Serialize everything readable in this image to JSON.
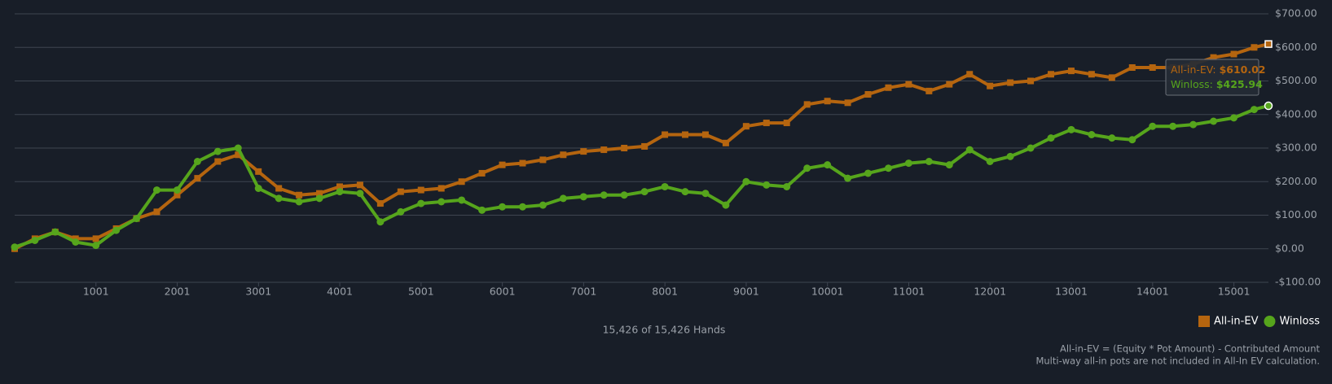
{
  "chart_data": {
    "type": "line",
    "x": [
      1,
      250,
      500,
      750,
      1000,
      1250,
      1500,
      1750,
      2000,
      2250,
      2500,
      2750,
      3000,
      3250,
      3500,
      3750,
      4000,
      4250,
      4500,
      4750,
      5000,
      5250,
      5500,
      5750,
      6000,
      6250,
      6500,
      6750,
      7000,
      7250,
      7500,
      7750,
      8000,
      8250,
      8500,
      8750,
      9000,
      9250,
      9500,
      9750,
      10000,
      10250,
      10500,
      10750,
      11000,
      11250,
      11500,
      11750,
      12000,
      12250,
      12500,
      12750,
      13000,
      13250,
      13500,
      13750,
      14000,
      14250,
      14500,
      14750,
      15000,
      15250,
      15426
    ],
    "series": [
      {
        "name": "All-in-EV",
        "color": "#b5650f",
        "marker": "square",
        "values": [
          0,
          30,
          50,
          30,
          30,
          60,
          90,
          110,
          160,
          210,
          260,
          280,
          230,
          180,
          160,
          165,
          185,
          190,
          135,
          170,
          175,
          180,
          200,
          225,
          250,
          255,
          265,
          280,
          290,
          295,
          300,
          305,
          340,
          340,
          340,
          315,
          365,
          375,
          375,
          430,
          440,
          435,
          460,
          480,
          490,
          470,
          490,
          520,
          485,
          495,
          500,
          520,
          530,
          520,
          510,
          540,
          540,
          540,
          550,
          570,
          580,
          600,
          610.02
        ]
      },
      {
        "name": "Winloss",
        "color": "#56a51c",
        "marker": "circle",
        "values": [
          5,
          25,
          50,
          20,
          10,
          55,
          90,
          175,
          175,
          260,
          290,
          300,
          180,
          150,
          140,
          150,
          170,
          165,
          80,
          110,
          135,
          140,
          145,
          115,
          125,
          125,
          130,
          150,
          155,
          160,
          160,
          170,
          185,
          170,
          165,
          130,
          200,
          190,
          185,
          240,
          250,
          210,
          225,
          240,
          255,
          260,
          250,
          295,
          260,
          275,
          300,
          330,
          355,
          340,
          330,
          325,
          365,
          365,
          370,
          380,
          390,
          415,
          425.94
        ]
      }
    ],
    "xlim": [
      1,
      15426
    ],
    "xticks": [
      1001,
      2001,
      3001,
      4001,
      5001,
      6001,
      7001,
      8001,
      9001,
      10001,
      11001,
      12001,
      13001,
      14001,
      15001
    ],
    "ylim": [
      -100,
      700
    ],
    "yticks": [
      {
        "value": -100,
        "label": "-$100.00"
      },
      {
        "value": 0,
        "label": "$0.00"
      },
      {
        "value": 100,
        "label": "$100.00"
      },
      {
        "value": 200,
        "label": "$200.00"
      },
      {
        "value": 300,
        "label": "$300.00"
      },
      {
        "value": 400,
        "label": "$400.00"
      },
      {
        "value": 500,
        "label": "$500.00"
      },
      {
        "value": 600,
        "label": "$600.00"
      },
      {
        "value": 700,
        "label": "$700.00"
      }
    ],
    "grid": true,
    "legend": "lower right",
    "tooltip": [
      {
        "text": "All-in-EV:",
        "label": "$610.02"
      },
      {
        "text": "Winloss:",
        "label": "$425.94"
      }
    ],
    "hands_caption": "15,426 of 15,426 Hands",
    "footnotes": [
      "All-in-EV = (Equity * Pot Amount) - Contributed Amount",
      "Multi-way all-in pots are not included in All-In EV calculation."
    ]
  }
}
